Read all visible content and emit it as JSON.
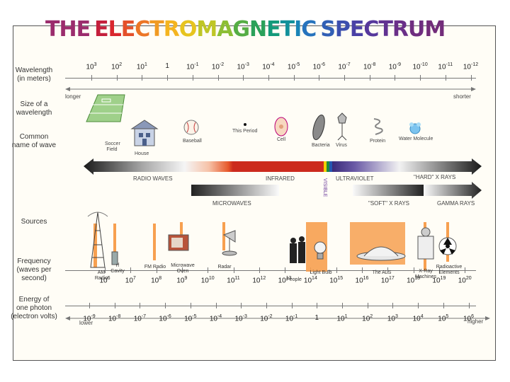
{
  "title": {
    "letters": [
      {
        "ch": "THE ",
        "color": "#9b2c6d"
      },
      {
        "ch": "E",
        "color": "#c41f3c"
      },
      {
        "ch": "L",
        "color": "#d9272e"
      },
      {
        "ch": "E",
        "color": "#e4502a"
      },
      {
        "ch": "C",
        "color": "#ec7626"
      },
      {
        "ch": "T",
        "color": "#f09a22"
      },
      {
        "ch": "R",
        "color": "#f4b41f"
      },
      {
        "ch": "O",
        "color": "#e7c41f"
      },
      {
        "ch": "M",
        "color": "#bfc626"
      },
      {
        "ch": "A",
        "color": "#8cbe35"
      },
      {
        "ch": "G",
        "color": "#55ad44"
      },
      {
        "ch": "N",
        "color": "#2aa15a"
      },
      {
        "ch": "E",
        "color": "#149a7a"
      },
      {
        "ch": "T",
        "color": "#11909a"
      },
      {
        "ch": "I",
        "color": "#1a85b7"
      },
      {
        "ch": "C ",
        "color": "#2673bd"
      },
      {
        "ch": "S",
        "color": "#315fb5"
      },
      {
        "ch": "P",
        "color": "#3c4fae"
      },
      {
        "ch": "E",
        "color": "#4a41a6"
      },
      {
        "ch": "C",
        "color": "#56389c"
      },
      {
        "ch": "T",
        "color": "#613291"
      },
      {
        "ch": "R",
        "color": "#6a2f88"
      },
      {
        "ch": "U",
        "color": "#6f2d80"
      },
      {
        "ch": "M",
        "color": "#722c7a"
      }
    ]
  },
  "labels": {
    "wavelength": [
      "Wavelength",
      "(in meters)"
    ],
    "size": [
      "Size of a",
      "wavelength"
    ],
    "common": [
      "Common",
      "name of wave"
    ],
    "sources": [
      "Sources"
    ],
    "frequency": [
      "Frequency",
      "(waves per",
      "second)"
    ],
    "energy": [
      "Energy of",
      "one photon",
      "(electron volts)"
    ]
  },
  "wavelength_ticks": [
    {
      "b": "10",
      "e": "3"
    },
    {
      "b": "10",
      "e": "2"
    },
    {
      "b": "10",
      "e": "1"
    },
    {
      "b": "1",
      "e": ""
    },
    {
      "b": "10",
      "e": "-1"
    },
    {
      "b": "10",
      "e": "-2"
    },
    {
      "b": "10",
      "e": "-3"
    },
    {
      "b": "10",
      "e": "-4"
    },
    {
      "b": "10",
      "e": "-5"
    },
    {
      "b": "10",
      "e": "-6"
    },
    {
      "b": "10",
      "e": "-7"
    },
    {
      "b": "10",
      "e": "-8"
    },
    {
      "b": "10",
      "e": "-9"
    },
    {
      "b": "10",
      "e": "-10"
    },
    {
      "b": "10",
      "e": "-11"
    },
    {
      "b": "10",
      "e": "-12"
    }
  ],
  "frequency_ticks": [
    {
      "b": "10",
      "e": "6"
    },
    {
      "b": "10",
      "e": "7"
    },
    {
      "b": "10",
      "e": "8"
    },
    {
      "b": "10",
      "e": "9"
    },
    {
      "b": "10",
      "e": "10"
    },
    {
      "b": "10",
      "e": "11"
    },
    {
      "b": "10",
      "e": "12"
    },
    {
      "b": "10",
      "e": "13"
    },
    {
      "b": "10",
      "e": "14"
    },
    {
      "b": "10",
      "e": "15"
    },
    {
      "b": "10",
      "e": "16"
    },
    {
      "b": "10",
      "e": "17"
    },
    {
      "b": "10",
      "e": "18"
    },
    {
      "b": "10",
      "e": "19"
    },
    {
      "b": "10",
      "e": "20"
    }
  ],
  "energy_ticks": [
    {
      "b": "10",
      "e": "-9"
    },
    {
      "b": "10",
      "e": "-8"
    },
    {
      "b": "10",
      "e": "-7"
    },
    {
      "b": "10",
      "e": "-6"
    },
    {
      "b": "10",
      "e": "-5"
    },
    {
      "b": "10",
      "e": "-4"
    },
    {
      "b": "10",
      "e": "-3"
    },
    {
      "b": "10",
      "e": "-2"
    },
    {
      "b": "10",
      "e": "-1"
    },
    {
      "b": "1",
      "e": ""
    },
    {
      "b": "10",
      "e": "1"
    },
    {
      "b": "10",
      "e": "2"
    },
    {
      "b": "10",
      "e": "3"
    },
    {
      "b": "10",
      "e": "4"
    },
    {
      "b": "10",
      "e": "5"
    },
    {
      "b": "10",
      "e": "6"
    }
  ],
  "size_row": {
    "longer": "longer",
    "shorter": "shorter",
    "items": {
      "soccer": "Soccer Field",
      "house": "House",
      "baseball": "Baseball",
      "period": "This Period",
      "cell": "Cell",
      "bacteria": "Bacteria",
      "virus": "Virus",
      "protein": "Protein",
      "water": "Water Molecule"
    }
  },
  "waves": {
    "radio": "RADIO WAVES",
    "infrared": "INFRARED",
    "visible": "VISIBLE",
    "ultraviolet": "ULTRAVIOLET",
    "hard_xray": "\"HARD\" X RAYS",
    "microwaves": "MICROWAVES",
    "soft_xray": "\"SOFT\" X RAYS",
    "gamma": "GAMMA RAYS"
  },
  "sources": {
    "am_radio": "AM Radio",
    "rf_cavity": "rf Cavity",
    "fm_radio": "FM Radio",
    "microwave_oven": "Microwave Oven",
    "radar": "Radar",
    "people": "People",
    "light_bulb": "Light Bulb",
    "als": "The ALS",
    "xray_machines": "X-Ray Machines",
    "radioactive": "Radioactive Elements"
  },
  "energy_row": {
    "lower": "lower",
    "higher": "higher"
  },
  "colors": {
    "orange": "#f7a050",
    "ruler": "#777777"
  }
}
